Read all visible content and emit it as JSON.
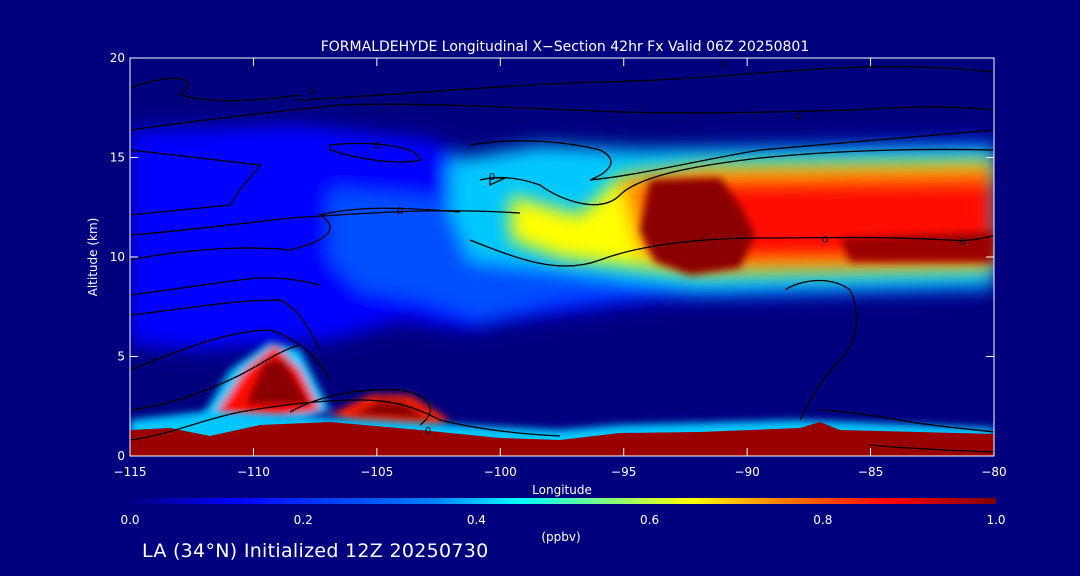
{
  "chart_data": {
    "type": "heatmap",
    "title": "FORMALDEHYDE Longitudinal X−Section 42hr  Fx Valid 06Z 20250801",
    "xlabel": "Longitude",
    "ylabel": "Altitude (km)",
    "xlim": [
      -115,
      -80
    ],
    "ylim": [
      0,
      20
    ],
    "x_ticks": [
      -115,
      -110,
      -105,
      -100,
      -95,
      -90,
      -85,
      -80
    ],
    "x_tick_labels": [
      "−115",
      "−110",
      "−105",
      "−100",
      "−95",
      "−90",
      "−85",
      "−80"
    ],
    "y_ticks": [
      0,
      5,
      10,
      15,
      20
    ],
    "y_tick_labels": [
      "0",
      "5",
      "10",
      "15",
      "20"
    ],
    "colorbar": {
      "label": "(ppbv)",
      "min": 0.0,
      "max": 1.0,
      "ticks": [
        0.0,
        0.2,
        0.4,
        0.6,
        0.8,
        1.0
      ],
      "tick_labels": [
        "0.0",
        "0.2",
        "0.4",
        "0.6",
        "0.8",
        "1.0"
      ],
      "colors": [
        "#00007f",
        "#0000ff",
        "#0080ff",
        "#00ffff",
        "#80ff80",
        "#ffff00",
        "#ff8000",
        "#ff0000",
        "#7f0000"
      ]
    },
    "regions": [
      {
        "name": "high-plume-core",
        "lon": [
          -94,
          -89.5
        ],
        "alt": [
          9.3,
          14
        ],
        "value": 1.0
      },
      {
        "name": "high-plume-east",
        "lon": [
          -89,
          -80
        ],
        "alt": [
          9.5,
          13.5
        ],
        "value": 0.88
      },
      {
        "name": "upper-band",
        "lon": [
          -99,
          -80
        ],
        "alt": [
          8.5,
          15.5
        ],
        "value": 0.55
      },
      {
        "name": "mid-troposphere-broad",
        "lon": [
          -115,
          -95
        ],
        "alt": [
          5,
          15
        ],
        "value": 0.2
      },
      {
        "name": "mountain-plume-west",
        "lon": [
          -111,
          -107.5
        ],
        "alt": [
          1.5,
          5.5
        ],
        "value": 1.0
      },
      {
        "name": "mountain-plume-central",
        "lon": [
          -106,
          -102
        ],
        "alt": [
          1.2,
          3
        ],
        "value": 1.0
      },
      {
        "name": "boundary-layer",
        "lon": [
          -115,
          -80
        ],
        "alt": [
          0,
          1.2
        ],
        "value": 1.0
      }
    ],
    "contour_labels": [
      "0",
      "0",
      "0",
      "0",
      "0",
      "0",
      "0",
      "0",
      "0"
    ],
    "grid": false,
    "legend": "colorbar-bottom"
  },
  "footer": "LA (34°N) Initialized 12Z 20250730"
}
